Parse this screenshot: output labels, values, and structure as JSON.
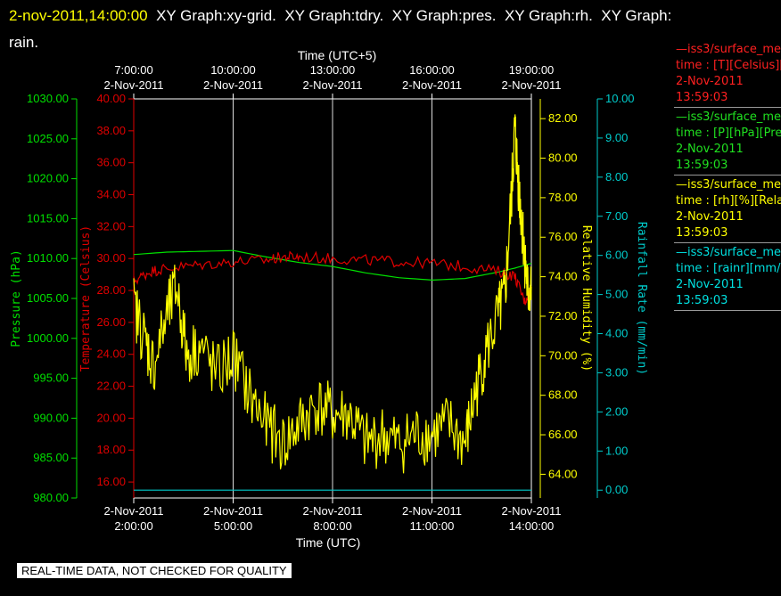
{
  "header": {
    "date": "2-nov-2011,14:00:00",
    "line1_rest": "  XY Graph:xy-grid.  XY Graph:tdry.  XY Graph:pres.  XY Graph:rh.  XY Graph:",
    "line2": "rain."
  },
  "colors": {
    "pressure": "#00e000",
    "temperature": "#e00000",
    "humidity": "#ffff00",
    "rain": "#00cccc",
    "frame": "#ffffff"
  },
  "legend": [
    {
      "color": "#ff2020",
      "lines": [
        "—iss3/surface_me",
        "time : [T][Celsius][T",
        "2-Nov-2011",
        "13:59:03"
      ]
    },
    {
      "color": "#20e020",
      "lines": [
        "—iss3/surface_me",
        "time : [P][hPa][Pres",
        "2-Nov-2011",
        "13:59:03"
      ]
    },
    {
      "color": "#ffff00",
      "lines": [
        "—iss3/surface_me",
        "time : [rh][%][Relati",
        "2-Nov-2011",
        "13:59:03"
      ]
    },
    {
      "color": "#00e0e0",
      "lines": [
        "—iss3/surface_me",
        "time : [rainr][mm/mi",
        "2-Nov-2011",
        "13:59:03"
      ]
    }
  ],
  "banner": "REAL-TIME DATA, NOT CHECKED FOR QUALITY",
  "chart_data": {
    "type": "line",
    "x_axis_bottom": {
      "label": "Time (UTC)",
      "ticks": [
        {
          "date": "2-Nov-2011",
          "time": "2:00:00",
          "hour": 2
        },
        {
          "date": "2-Nov-2011",
          "time": "5:00:00",
          "hour": 5
        },
        {
          "date": "2-Nov-2011",
          "time": "8:00:00",
          "hour": 8
        },
        {
          "date": "2-Nov-2011",
          "time": "11:00:00",
          "hour": 11
        },
        {
          "date": "2-Nov-2011",
          "time": "14:00:00",
          "hour": 14
        }
      ],
      "range_hours_utc": [
        2,
        14
      ]
    },
    "x_axis_top": {
      "label": "Time (UTC+5)",
      "ticks": [
        {
          "time": "7:00:00",
          "date": "2-Nov-2011"
        },
        {
          "time": "10:00:00",
          "date": "2-Nov-2011"
        },
        {
          "time": "13:00:00",
          "date": "2-Nov-2011"
        },
        {
          "time": "16:00:00",
          "date": "2-Nov-2011"
        },
        {
          "time": "19:00:00",
          "date": "2-Nov-2011"
        }
      ]
    },
    "grid": "vertical",
    "axes": {
      "pressure": {
        "label": "Pressure (hPa)",
        "range": [
          980,
          1030
        ],
        "ticks": [
          "980.00",
          "985.00",
          "990.00",
          "995.00",
          "1000.00",
          "1005.00",
          "1010.00",
          "1015.00",
          "1020.00",
          "1025.00",
          "1030.00"
        ]
      },
      "temperature": {
        "label": "Temperature (Celsius)",
        "range": [
          15,
          40
        ],
        "ticks": [
          "16.00",
          "18.00",
          "20.00",
          "22.00",
          "24.00",
          "26.00",
          "28.00",
          "30.00",
          "32.00",
          "34.00",
          "36.00",
          "38.00",
          "40.00"
        ]
      },
      "humidity": {
        "label": "Relative Humidity (%)",
        "range": [
          62.8,
          83
        ],
        "ticks": [
          "64.00",
          "66.00",
          "68.00",
          "70.00",
          "72.00",
          "74.00",
          "76.00",
          "78.00",
          "80.00",
          "82.00"
        ]
      },
      "rain": {
        "label": "Rainfall Rate (mm/min)",
        "range": [
          -0.2,
          10
        ],
        "ticks": [
          "0.00",
          "1.00",
          "2.00",
          "3.00",
          "4.00",
          "5.00",
          "6.00",
          "7.00",
          "8.00",
          "9.00",
          "10.00"
        ]
      }
    },
    "series": [
      {
        "name": "iss3/surface_me time : [P][hPa][Pres",
        "axis": "pressure",
        "color": "#00e000",
        "noisy": false,
        "x": [
          2,
          3,
          4,
          5,
          6,
          7,
          8,
          9,
          10,
          11,
          12,
          13,
          13.5,
          14
        ],
        "y": [
          1010.5,
          1010.8,
          1010.9,
          1011.0,
          1010.2,
          1009.5,
          1009.0,
          1008.2,
          1007.6,
          1007.3,
          1007.5,
          1008.3,
          1008.8,
          1009.4
        ]
      },
      {
        "name": "iss3/surface_me time : [T][Celsius][T",
        "axis": "temperature",
        "color": "#e00000",
        "noisy": true,
        "x": [
          2,
          2.5,
          3,
          4,
          5,
          6,
          6.5,
          7,
          8,
          9,
          10,
          11,
          12,
          13,
          13.5,
          13.8,
          14
        ],
        "y": [
          28.6,
          29.2,
          29.4,
          29.6,
          29.8,
          29.9,
          30.1,
          30.1,
          30.0,
          29.9,
          29.8,
          29.7,
          29.5,
          29.2,
          28.9,
          27.3,
          28.2
        ]
      },
      {
        "name": "iss3/surface_me time : [rh][%][Relati",
        "axis": "humidity",
        "color": "#ffff00",
        "noisy": true,
        "x": [
          2,
          2.3,
          2.6,
          3,
          3.3,
          3.6,
          4,
          4.5,
          5,
          5.5,
          6,
          6.5,
          7,
          7.5,
          8,
          8.5,
          9,
          9.5,
          10,
          10.5,
          11,
          11.5,
          12,
          12.3,
          12.6,
          13,
          13.2,
          13.4,
          13.5,
          13.6,
          13.7,
          13.8,
          13.9,
          14
        ],
        "y": [
          72.5,
          71,
          69.5,
          72,
          73.5,
          70,
          70.5,
          69,
          70,
          68,
          66.5,
          65.5,
          66.5,
          67.5,
          67,
          67,
          65.5,
          66,
          65.5,
          66,
          66,
          66.5,
          65.5,
          68,
          70,
          72,
          73,
          78,
          81.5,
          79,
          77,
          75,
          73,
          73.5
        ]
      },
      {
        "name": "iss3/surface_me time : [rainr][mm/mi",
        "axis": "rain",
        "color": "#00cccc",
        "noisy": false,
        "x": [
          2,
          14
        ],
        "y": [
          0,
          0
        ]
      }
    ]
  }
}
